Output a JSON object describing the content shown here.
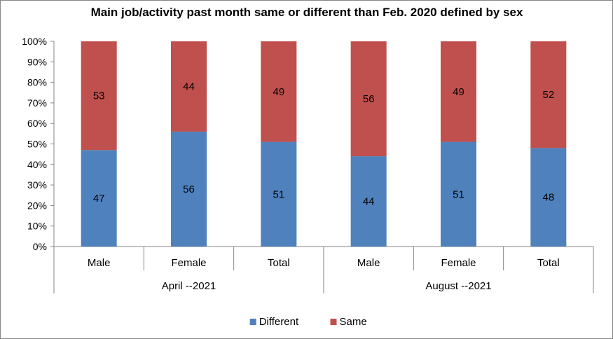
{
  "chart_data": {
    "type": "bar",
    "stacked": true,
    "percent_stacked": true,
    "title": "Main job/activity past month same or different than Feb. 2020 defined by sex",
    "categories": [
      "Male",
      "Female",
      "Total",
      "Male",
      "Female",
      "Total"
    ],
    "groups": [
      {
        "label": "April --2021",
        "span": 3
      },
      {
        "label": "August --2021",
        "span": 3
      }
    ],
    "series": [
      {
        "name": "Different",
        "color": "#4F81BD",
        "values": [
          47,
          56,
          51,
          44,
          51,
          48
        ]
      },
      {
        "name": "Same",
        "color": "#C0504D",
        "values": [
          53,
          44,
          49,
          56,
          49,
          52
        ]
      }
    ],
    "ylim": [
      0,
      100
    ],
    "yticks": [
      "0%",
      "10%",
      "20%",
      "30%",
      "40%",
      "50%",
      "60%",
      "70%",
      "80%",
      "90%",
      "100%"
    ],
    "grid": false,
    "legend": "bottom"
  }
}
